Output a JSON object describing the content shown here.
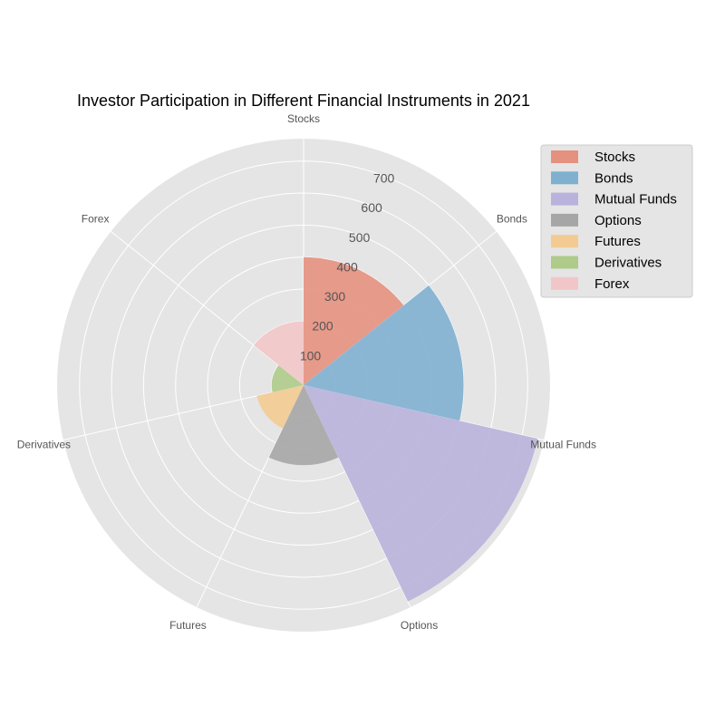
{
  "chart_data": {
    "type": "polar-bar",
    "title": "Investor Participation in Different Financial Instruments in 2021",
    "categories": [
      "Stocks",
      "Bonds",
      "Mutual Funds",
      "Options",
      "Futures",
      "Derivatives",
      "Forex"
    ],
    "values": [
      400,
      500,
      750,
      250,
      150,
      100,
      200
    ],
    "colors": [
      "#E5917F",
      "#7FB0D0",
      "#B9B2DC",
      "#A6A6A6",
      "#F3CB92",
      "#AECB8A",
      "#F2C6C8"
    ],
    "r_ticks": [
      "100",
      "200",
      "300",
      "400",
      "500",
      "600",
      "700"
    ],
    "r_max": 770,
    "grid": true,
    "legend_position": "top-right",
    "legend": [
      "Stocks",
      "Bonds",
      "Mutual Funds",
      "Options",
      "Futures",
      "Derivatives",
      "Forex"
    ]
  }
}
